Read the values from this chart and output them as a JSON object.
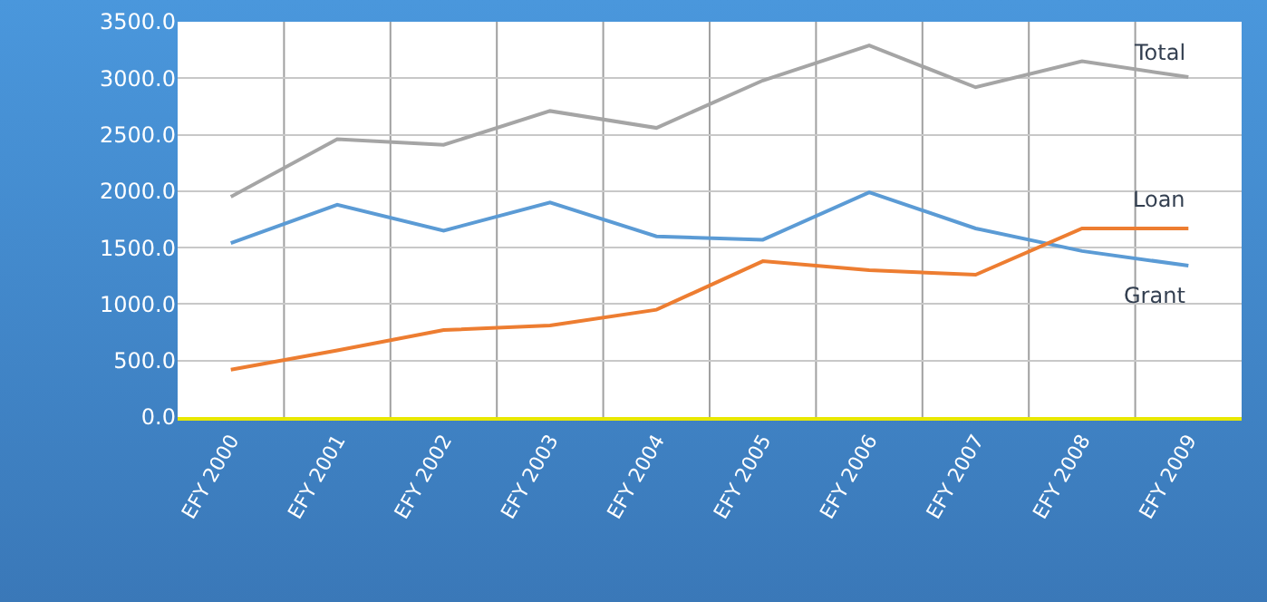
{
  "chart_data": {
    "type": "line",
    "categories": [
      "EFY 2000",
      "EFY 2001",
      "EFY 2002",
      "EFY 2003",
      "EFY 2004",
      "EFY 2005",
      "EFY 2006",
      "EFY 2007",
      "EFY 2008",
      "EFY 2009"
    ],
    "series": [
      {
        "name": "Total",
        "color": "#a5a5a5",
        "values": [
          1950,
          2460,
          2410,
          2710,
          2560,
          2980,
          3290,
          2920,
          3150,
          3010
        ]
      },
      {
        "name": "Grant",
        "color": "#5b9bd5",
        "values": [
          1540,
          1880,
          1650,
          1900,
          1600,
          1570,
          1990,
          1670,
          1470,
          1340
        ]
      },
      {
        "name": "Loan",
        "color": "#ed7d31",
        "values": [
          420,
          590,
          770,
          810,
          950,
          1380,
          1300,
          1260,
          1670,
          1670
        ]
      }
    ],
    "ylim": [
      0,
      3500
    ],
    "yticks": [
      {
        "value": 0,
        "label": "0.0"
      },
      {
        "value": 500,
        "label": "500.0"
      },
      {
        "value": 1000,
        "label": "1000.0"
      },
      {
        "value": 1500,
        "label": "1500.0"
      },
      {
        "value": 2000,
        "label": "2000.0"
      },
      {
        "value": 2500,
        "label": "2500.0"
      },
      {
        "value": 3000,
        "label": "3000.0"
      },
      {
        "value": 3500,
        "label": "3500.0"
      }
    ],
    "grid": true,
    "legend": false,
    "marker": "none",
    "line_style": "solid"
  }
}
